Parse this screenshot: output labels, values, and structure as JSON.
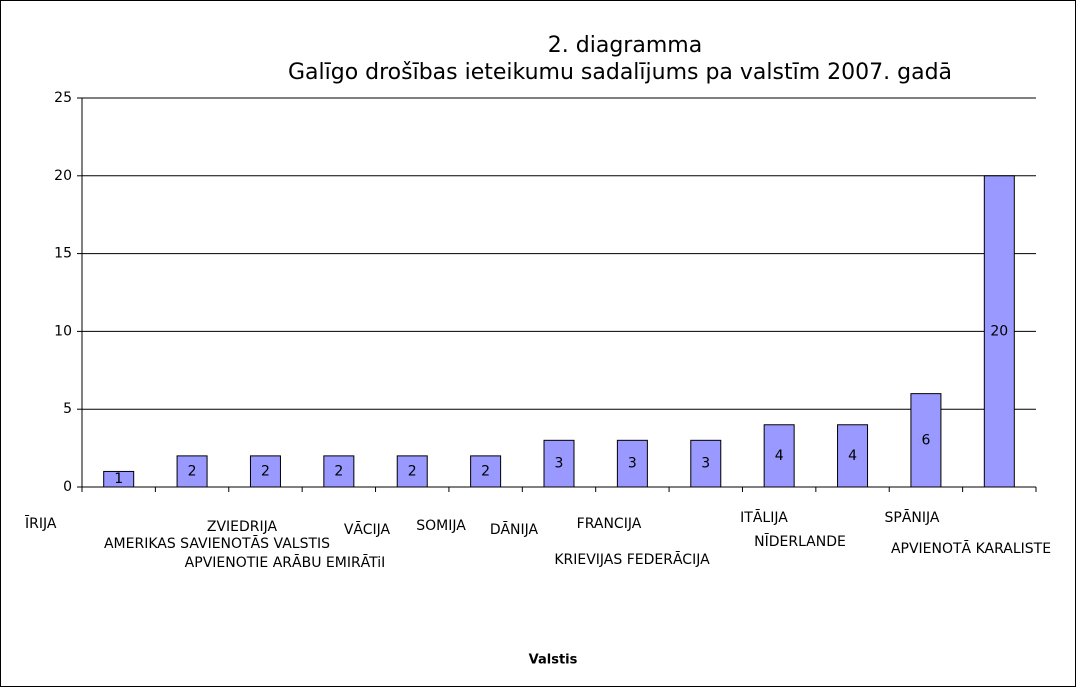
{
  "chart_data": {
    "type": "bar",
    "title": "2. diagramma",
    "subtitle": "Galīgo drošības ieteikumu sadalījums pa valstīm 2007. gadā",
    "x_label": "Valstis",
    "categories": [
      "ĪRIJA",
      "AMERIKAS SAVIENOTĀS VALSTIS",
      "ZVIEDRIJA",
      "APVIENOTIE ARĀBU EMIRĀTiI",
      "VĀCIJA",
      "SOMIJA",
      "DĀNIJA",
      "FRANCIJA",
      "KRIEVIJAS FEDERĀCIJA",
      "ITĀLIJA",
      "NĪDERLANDE",
      "SPĀNIJA",
      "APVIENOTĀ KARALISTE"
    ],
    "values": [
      1,
      2,
      2,
      2,
      2,
      2,
      3,
      3,
      3,
      4,
      4,
      6,
      20
    ],
    "color": "#9999ff",
    "ylim": [
      0,
      25
    ],
    "yticks": [
      0,
      5,
      10,
      15,
      20,
      25
    ],
    "grid": true
  }
}
